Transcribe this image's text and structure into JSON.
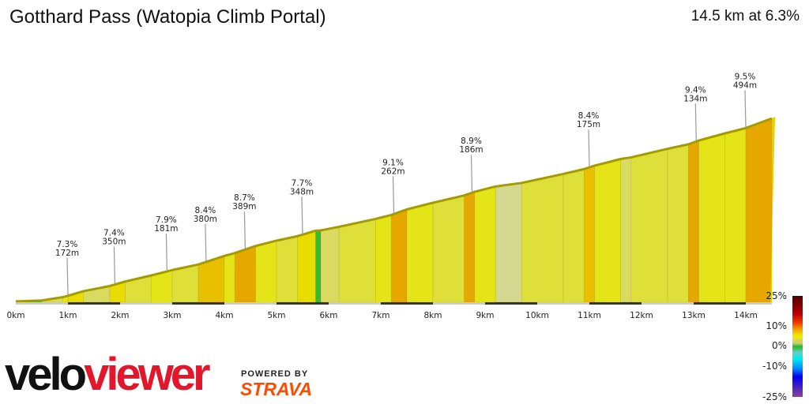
{
  "header": {
    "title": "Gotthard Pass (Watopia Climb Portal)",
    "summary": "14.5 km at 6.3%"
  },
  "branding": {
    "veloviewer_a": "velo",
    "veloviewer_b": "viewer",
    "powered_by": "POWERED BY",
    "strava": "STRAVA"
  },
  "chart_data": {
    "type": "area",
    "title": "",
    "xlabel": "",
    "ylabel": "",
    "x_unit": "km",
    "xlim": [
      0,
      14.5
    ],
    "x_ticks": [
      "0km",
      "1km",
      "2km",
      "3km",
      "4km",
      "5km",
      "6km",
      "7km",
      "8km",
      "9km",
      "10km",
      "11km",
      "12km",
      "13km",
      "14km"
    ],
    "segments": [
      [
        0,
        0.5,
        1
      ],
      [
        0.5,
        0.9,
        4
      ],
      [
        0.9,
        1.0,
        7
      ],
      [
        1.0,
        1.3,
        7.5
      ],
      [
        1.3,
        1.8,
        5
      ],
      [
        1.8,
        2.1,
        7.4
      ],
      [
        2.1,
        2.6,
        6
      ],
      [
        2.6,
        3.0,
        6.5
      ],
      [
        3.0,
        3.5,
        5.5
      ],
      [
        3.5,
        4.0,
        8.4
      ],
      [
        4.0,
        4.2,
        7
      ],
      [
        4.2,
        4.6,
        8.7
      ],
      [
        4.6,
        5.0,
        6.5
      ],
      [
        5.0,
        5.4,
        5.5
      ],
      [
        5.4,
        5.75,
        7.7
      ],
      [
        5.75,
        5.85,
        1.5
      ],
      [
        5.85,
        6.2,
        5
      ],
      [
        6.2,
        6.9,
        5.5
      ],
      [
        6.9,
        7.2,
        6.5
      ],
      [
        7.2,
        7.5,
        9.1
      ],
      [
        7.5,
        8.0,
        6.5
      ],
      [
        8.0,
        8.6,
        6
      ],
      [
        8.6,
        8.8,
        8.9
      ],
      [
        8.8,
        9.2,
        6.5
      ],
      [
        9.2,
        9.7,
        3.5
      ],
      [
        9.7,
        10.5,
        5.5
      ],
      [
        10.5,
        10.9,
        6
      ],
      [
        10.9,
        11.1,
        8.4
      ],
      [
        11.1,
        11.6,
        6.5
      ],
      [
        11.6,
        11.8,
        4
      ],
      [
        11.8,
        12.5,
        6
      ],
      [
        12.5,
        12.9,
        5.5
      ],
      [
        12.9,
        13.1,
        9.4
      ],
      [
        13.1,
        13.6,
        7
      ],
      [
        13.6,
        14.0,
        6.5
      ],
      [
        14.0,
        14.5,
        9.5
      ]
    ],
    "annotations": [
      {
        "km": 1.0,
        "grade": "7.3%",
        "length": "172m"
      },
      {
        "km": 1.9,
        "grade": "7.4%",
        "length": "350m"
      },
      {
        "km": 2.9,
        "grade": "7.9%",
        "length": "181m"
      },
      {
        "km": 3.65,
        "grade": "8.4%",
        "length": "380m"
      },
      {
        "km": 4.4,
        "grade": "8.7%",
        "length": "389m"
      },
      {
        "km": 5.5,
        "grade": "7.7%",
        "length": "348m"
      },
      {
        "km": 7.25,
        "grade": "9.1%",
        "length": "262m"
      },
      {
        "km": 8.75,
        "grade": "8.9%",
        "length": "186m"
      },
      {
        "km": 11.0,
        "grade": "8.4%",
        "length": "175m"
      },
      {
        "km": 13.05,
        "grade": "9.4%",
        "length": "134m"
      },
      {
        "km": 14.0,
        "grade": "9.5%",
        "length": "494m"
      }
    ],
    "legend": {
      "labels": [
        "25%",
        "10%",
        "0%",
        "-10%",
        "-25%"
      ],
      "placement": "right"
    },
    "colors": {
      "ridge": "#a39c00",
      "dist_dark": "#333333",
      "dist_light": "#cccccc"
    }
  }
}
